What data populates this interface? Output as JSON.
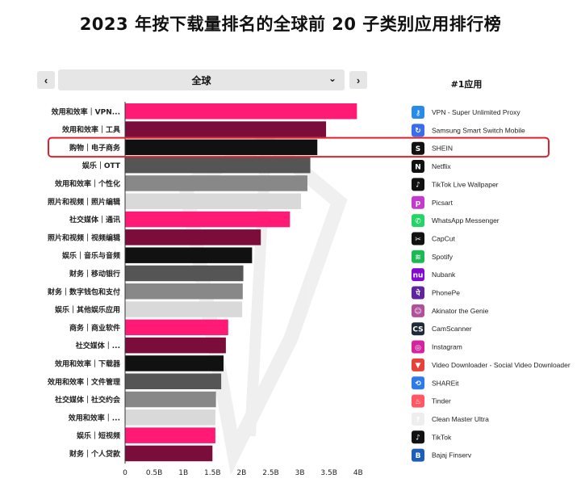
{
  "title": "2023 年按下载量排名的全球前 20 子类别应用排行榜",
  "controls": {
    "prev": "‹",
    "next": "›",
    "region": "全球",
    "region_chevron": "⌄"
  },
  "legend_title": "#1应用",
  "colors": {
    "pink": "#ff1a75",
    "maroon": "#7a0d3a",
    "black": "#111111",
    "dark_gray": "#555555",
    "mid_gray": "#888888",
    "light_gray": "#d9d9d9",
    "highlight": "#e0202a"
  },
  "highlight_category": "购物｜电子商务",
  "chart_data": {
    "type": "bar",
    "orientation": "horizontal",
    "categories": [
      "效用和效率｜VPN...",
      "效用和效率｜工具",
      "购物｜电子商务",
      "娱乐｜OTT",
      "效用和效率｜个性化",
      "照片和视频｜照片编辑",
      "社交媒体｜通讯",
      "照片和视频｜视频编辑",
      "娱乐｜音乐与音频",
      "财务｜移动银行",
      "财务｜数字钱包和支付",
      "娱乐｜其他娱乐应用",
      "商务｜商业软件",
      "社交媒体｜...",
      "效用和效率｜下载器",
      "效用和效率｜文件管理",
      "社交媒体｜社交约会",
      "效用和效率｜...",
      "娱乐｜短视频",
      "财务｜个人贷款"
    ],
    "values": [
      3.98,
      3.45,
      3.3,
      3.18,
      3.13,
      3.02,
      2.83,
      2.33,
      2.18,
      2.03,
      2.02,
      2.01,
      1.77,
      1.73,
      1.69,
      1.65,
      1.56,
      1.55,
      1.55,
      1.5
    ],
    "bar_colors": [
      "pink",
      "maroon",
      "black",
      "dark_gray",
      "mid_gray",
      "light_gray",
      "pink",
      "maroon",
      "black",
      "dark_gray",
      "mid_gray",
      "light_gray",
      "pink",
      "maroon",
      "black",
      "dark_gray",
      "mid_gray",
      "light_gray",
      "pink",
      "maroon"
    ],
    "xlim": [
      0,
      4.1
    ],
    "x_ticks": [
      "0",
      "0.5B",
      "1B",
      "1.5B",
      "2B",
      "2.5B",
      "3B",
      "3.5B",
      "4B"
    ],
    "x_tick_values": [
      0,
      0.5,
      1,
      1.5,
      2,
      2.5,
      3,
      3.5,
      4
    ],
    "unit": "B"
  },
  "top_apps": [
    {
      "name": "VPN - Super Unlimited Proxy",
      "icon": "vpn-key-icon",
      "color": "#2a8ae8",
      "glyph": "⚷"
    },
    {
      "name": "Samsung Smart Switch Mobile",
      "icon": "smart-switch-icon",
      "color": "#3a6de8",
      "glyph": "↻"
    },
    {
      "name": "SHEIN",
      "icon": "shein-icon",
      "color": "#111111",
      "glyph": "S"
    },
    {
      "name": "Netflix",
      "icon": "netflix-icon",
      "color": "#111111",
      "glyph": "N",
      "glyph_color": "#e50914"
    },
    {
      "name": "TikTok Live Wallpaper",
      "icon": "tiktok-wallpaper-icon",
      "color": "#111111",
      "glyph": "♪"
    },
    {
      "name": "Picsart",
      "icon": "picsart-icon",
      "color": "#c43ad0",
      "glyph": "p"
    },
    {
      "name": "WhatsApp Messenger",
      "icon": "whatsapp-icon",
      "color": "#25d366",
      "glyph": "✆"
    },
    {
      "name": "CapCut",
      "icon": "capcut-icon",
      "color": "#111111",
      "glyph": "✂"
    },
    {
      "name": "Spotify",
      "icon": "spotify-icon",
      "color": "#1db954",
      "glyph": "≋"
    },
    {
      "name": "Nubank",
      "icon": "nubank-icon",
      "color": "#820ad1",
      "glyph": "nu"
    },
    {
      "name": "PhonePe",
      "icon": "phonepe-icon",
      "color": "#5f259f",
      "glyph": "पे"
    },
    {
      "name": "Akinator the Genie",
      "icon": "akinator-icon",
      "color": "#b0509a",
      "glyph": "☺"
    },
    {
      "name": "CamScanner",
      "icon": "camscanner-icon",
      "color": "#1e2a38",
      "glyph": "CS"
    },
    {
      "name": "Instagram",
      "icon": "instagram-icon",
      "color": "#d6249f",
      "glyph": "◎"
    },
    {
      "name": "Video Downloader - Social Video Downloader",
      "icon": "video-downloader-icon",
      "color": "#e8413a",
      "glyph": "▼"
    },
    {
      "name": "SHAREit",
      "icon": "shareit-icon",
      "color": "#2d7ae8",
      "glyph": "⟲"
    },
    {
      "name": "Tinder",
      "icon": "tinder-icon",
      "color": "#ff5864",
      "glyph": "♨"
    },
    {
      "name": "Clean Master Ultra",
      "icon": "clean-master-icon",
      "color": "#eeeeee",
      "glyph": "?",
      "glyph_color": "#bbbbbb"
    },
    {
      "name": "TikTok",
      "icon": "tiktok-icon",
      "color": "#111111",
      "glyph": "♪"
    },
    {
      "name": "Bajaj Finserv",
      "icon": "bajaj-finserv-icon",
      "color": "#1d5fb8",
      "glyph": "B"
    }
  ]
}
